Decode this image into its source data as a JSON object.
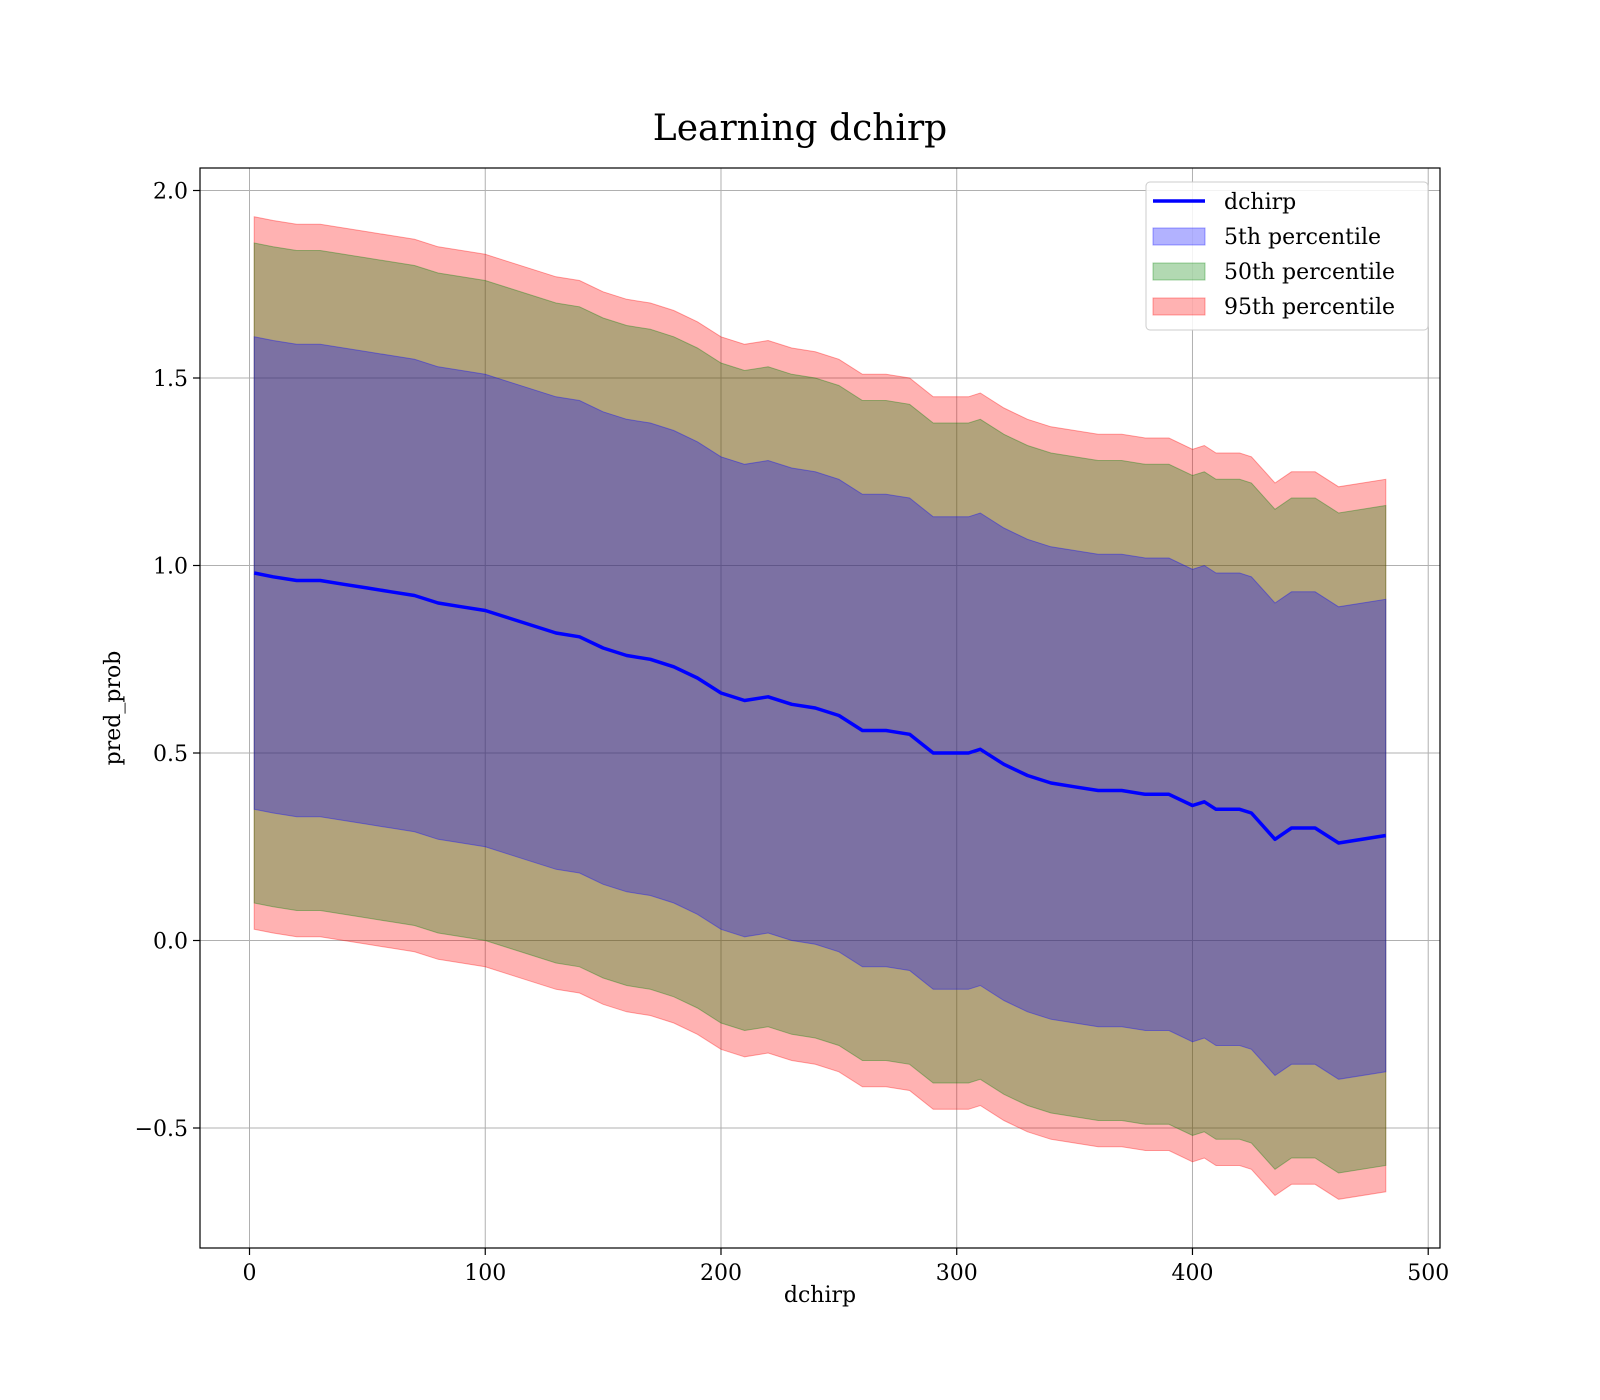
{
  "chart_data": {
    "type": "area",
    "title": "Learning dchirp",
    "xlabel": "dchirp",
    "ylabel": "pred_prob",
    "xlim": [
      -21,
      505
    ],
    "ylim": [
      -0.82,
      2.06
    ],
    "x_ticks": [
      0,
      100,
      200,
      300,
      400,
      500
    ],
    "y_ticks": [
      -0.5,
      0.0,
      0.5,
      1.0,
      1.5,
      2.0
    ],
    "x_tick_labels": [
      "0",
      "100",
      "200",
      "300",
      "400",
      "500"
    ],
    "y_tick_labels": [
      "−0.5",
      "0.0",
      "0.5",
      "1.0",
      "1.5",
      "2.0"
    ],
    "grid": true,
    "legend_position": "top-right",
    "x": [
      2,
      10,
      20,
      30,
      40,
      50,
      60,
      70,
      80,
      90,
      100,
      110,
      120,
      130,
      140,
      150,
      160,
      170,
      180,
      190,
      200,
      210,
      220,
      230,
      240,
      250,
      260,
      270,
      280,
      290,
      300,
      305,
      310,
      320,
      330,
      340,
      350,
      360,
      370,
      380,
      390,
      400,
      405,
      410,
      420,
      425,
      435,
      442,
      452,
      462,
      482
    ],
    "series": [
      {
        "name": "dchirp",
        "kind": "line",
        "color": "#0000ff",
        "values": [
          0.98,
          0.97,
          0.96,
          0.96,
          0.95,
          0.94,
          0.93,
          0.92,
          0.9,
          0.89,
          0.88,
          0.86,
          0.84,
          0.82,
          0.81,
          0.78,
          0.76,
          0.75,
          0.73,
          0.7,
          0.66,
          0.64,
          0.65,
          0.63,
          0.62,
          0.6,
          0.56,
          0.56,
          0.55,
          0.5,
          0.5,
          0.5,
          0.51,
          0.47,
          0.44,
          0.42,
          0.41,
          0.4,
          0.4,
          0.39,
          0.39,
          0.36,
          0.37,
          0.35,
          0.35,
          0.34,
          0.27,
          0.3,
          0.3,
          0.26,
          0.28
        ]
      },
      {
        "name": "5th percentile",
        "kind": "band",
        "color": "#0000ff",
        "opacity": 0.3,
        "upper": [
          1.61,
          1.6,
          1.59,
          1.59,
          1.58,
          1.57,
          1.56,
          1.55,
          1.53,
          1.52,
          1.51,
          1.49,
          1.47,
          1.45,
          1.44,
          1.41,
          1.39,
          1.38,
          1.36,
          1.33,
          1.29,
          1.27,
          1.28,
          1.26,
          1.25,
          1.23,
          1.19,
          1.19,
          1.18,
          1.13,
          1.13,
          1.13,
          1.14,
          1.1,
          1.07,
          1.05,
          1.04,
          1.03,
          1.03,
          1.02,
          1.02,
          0.99,
          1.0,
          0.98,
          0.98,
          0.97,
          0.9,
          0.93,
          0.93,
          0.89,
          0.91
        ],
        "lower": [
          0.35,
          0.34,
          0.33,
          0.33,
          0.32,
          0.31,
          0.3,
          0.29,
          0.27,
          0.26,
          0.25,
          0.23,
          0.21,
          0.19,
          0.18,
          0.15,
          0.13,
          0.12,
          0.1,
          0.07,
          0.03,
          0.01,
          0.02,
          0.0,
          -0.01,
          -0.03,
          -0.07,
          -0.07,
          -0.08,
          -0.13,
          -0.13,
          -0.13,
          -0.12,
          -0.16,
          -0.19,
          -0.21,
          -0.22,
          -0.23,
          -0.23,
          -0.24,
          -0.24,
          -0.27,
          -0.26,
          -0.28,
          -0.28,
          -0.29,
          -0.36,
          -0.33,
          -0.33,
          -0.37,
          -0.35
        ]
      },
      {
        "name": "50th percentile",
        "kind": "band",
        "color": "#008000",
        "opacity": 0.3,
        "upper": [
          1.86,
          1.85,
          1.84,
          1.84,
          1.83,
          1.82,
          1.81,
          1.8,
          1.78,
          1.77,
          1.76,
          1.74,
          1.72,
          1.7,
          1.69,
          1.66,
          1.64,
          1.63,
          1.61,
          1.58,
          1.54,
          1.52,
          1.53,
          1.51,
          1.5,
          1.48,
          1.44,
          1.44,
          1.43,
          1.38,
          1.38,
          1.38,
          1.39,
          1.35,
          1.32,
          1.3,
          1.29,
          1.28,
          1.28,
          1.27,
          1.27,
          1.24,
          1.25,
          1.23,
          1.23,
          1.22,
          1.15,
          1.18,
          1.18,
          1.14,
          1.16
        ],
        "lower": [
          0.1,
          0.09,
          0.08,
          0.08,
          0.07,
          0.06,
          0.05,
          0.04,
          0.02,
          0.01,
          0.0,
          -0.02,
          -0.04,
          -0.06,
          -0.07,
          -0.1,
          -0.12,
          -0.13,
          -0.15,
          -0.18,
          -0.22,
          -0.24,
          -0.23,
          -0.25,
          -0.26,
          -0.28,
          -0.32,
          -0.32,
          -0.33,
          -0.38,
          -0.38,
          -0.38,
          -0.37,
          -0.41,
          -0.44,
          -0.46,
          -0.47,
          -0.48,
          -0.48,
          -0.49,
          -0.49,
          -0.52,
          -0.51,
          -0.53,
          -0.53,
          -0.54,
          -0.61,
          -0.58,
          -0.58,
          -0.62,
          -0.6
        ]
      },
      {
        "name": "95th percentile",
        "kind": "band",
        "color": "#ff0000",
        "opacity": 0.3,
        "upper": [
          1.93,
          1.92,
          1.91,
          1.91,
          1.9,
          1.89,
          1.88,
          1.87,
          1.85,
          1.84,
          1.83,
          1.81,
          1.79,
          1.77,
          1.76,
          1.73,
          1.71,
          1.7,
          1.68,
          1.65,
          1.61,
          1.59,
          1.6,
          1.58,
          1.57,
          1.55,
          1.51,
          1.51,
          1.5,
          1.45,
          1.45,
          1.45,
          1.46,
          1.42,
          1.39,
          1.37,
          1.36,
          1.35,
          1.35,
          1.34,
          1.34,
          1.31,
          1.32,
          1.3,
          1.3,
          1.29,
          1.22,
          1.25,
          1.25,
          1.21,
          1.23
        ],
        "lower": [
          0.03,
          0.02,
          0.01,
          0.01,
          0.0,
          -0.01,
          -0.02,
          -0.03,
          -0.05,
          -0.06,
          -0.07,
          -0.09,
          -0.11,
          -0.13,
          -0.14,
          -0.17,
          -0.19,
          -0.2,
          -0.22,
          -0.25,
          -0.29,
          -0.31,
          -0.3,
          -0.32,
          -0.33,
          -0.35,
          -0.39,
          -0.39,
          -0.4,
          -0.45,
          -0.45,
          -0.45,
          -0.44,
          -0.48,
          -0.51,
          -0.53,
          -0.54,
          -0.55,
          -0.55,
          -0.56,
          -0.56,
          -0.59,
          -0.58,
          -0.6,
          -0.6,
          -0.61,
          -0.68,
          -0.65,
          -0.65,
          -0.69,
          -0.67
        ]
      }
    ]
  }
}
